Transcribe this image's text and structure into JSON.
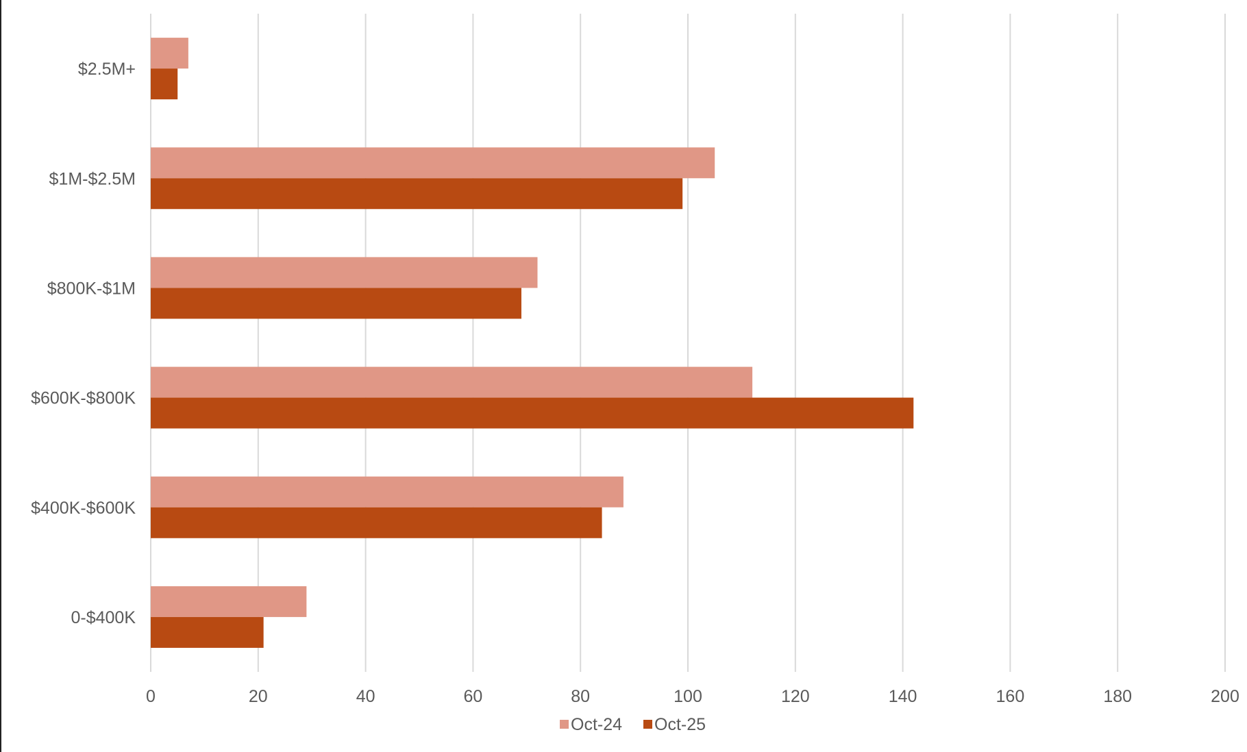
{
  "chart_data": {
    "type": "bar",
    "orientation": "horizontal",
    "title": "",
    "xlabel": "",
    "ylabel": "",
    "categories": [
      "$2.5M+",
      "$1M-$2.5M",
      "$800K-$1M",
      "$600K-$800K",
      "$400K-$600K",
      "0-$400K"
    ],
    "series": [
      {
        "name": "Oct-24",
        "color": "#e09786",
        "values": [
          7,
          105,
          72,
          112,
          88,
          29
        ]
      },
      {
        "name": "Oct-25",
        "color": "#b84a12",
        "values": [
          5,
          99,
          69,
          142,
          84,
          21
        ]
      }
    ],
    "xlim": [
      0,
      200
    ],
    "xticks": [
      0,
      20,
      40,
      60,
      80,
      100,
      120,
      140,
      160,
      180,
      200
    ],
    "grid": true,
    "gridline_color": "#d9d9d9",
    "legend_position": "bottom"
  }
}
